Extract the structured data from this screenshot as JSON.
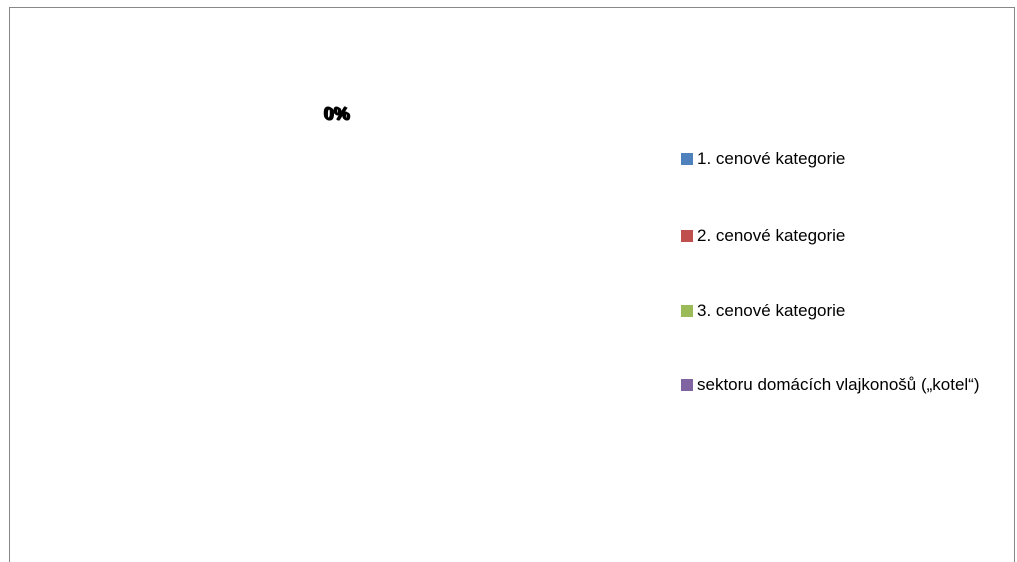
{
  "chart_data": {
    "type": "pie",
    "categories": [
      "1. cenové kategorie",
      "2. cenové kategorie",
      "3. cenové kategorie",
      "sektoru domácích vlajkonošů („kotel“)"
    ],
    "values": [
      0,
      0,
      0,
      0
    ],
    "value_labels": [
      "0%",
      "0%",
      "0%",
      "0%"
    ],
    "colors": [
      "#4f81bd",
      "#c0504d",
      "#9bbb59",
      "#8064a2"
    ],
    "legend": "right"
  }
}
